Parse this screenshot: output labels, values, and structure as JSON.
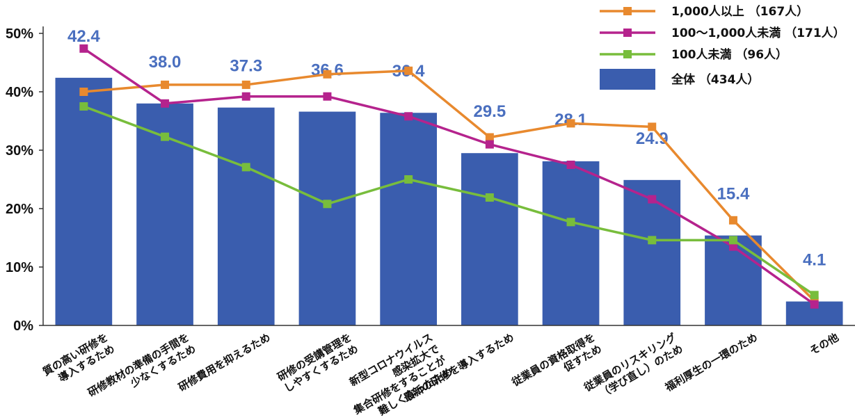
{
  "chart_data": {
    "type": "bar",
    "ylim": [
      0,
      50
    ],
    "yticks": [
      {
        "value": 0,
        "label": "0%"
      },
      {
        "value": 10,
        "label": "10%"
      },
      {
        "value": 20,
        "label": "20%"
      },
      {
        "value": 30,
        "label": "30%"
      },
      {
        "value": 40,
        "label": "40%"
      },
      {
        "value": 50,
        "label": "50%"
      }
    ],
    "categories": [
      [
        "質の高い研修を",
        "導入するため"
      ],
      [
        "研修教材の準備の手間を",
        "少なくするため"
      ],
      [
        "研修費用を抑えるため"
      ],
      [
        "研修の受講管理を",
        "しやすくするため"
      ],
      [
        "新型コロナウイルス",
        "感染拡大で",
        "集合研修をすることが",
        "難しくなったため"
      ],
      [
        "最新の研修を導入するため"
      ],
      [
        "従業員の資格取得を",
        "促すため"
      ],
      [
        "従業員のリスキリング",
        "（学び直し）のため"
      ],
      [
        "福利厚生の一環のため"
      ],
      [
        "その他"
      ]
    ],
    "bar_series": {
      "name": "全体 （434人）",
      "color": "#3a5dae",
      "values": [
        42.4,
        38.0,
        37.3,
        36.6,
        36.4,
        29.5,
        28.1,
        24.9,
        15.4,
        4.1
      ],
      "labels": [
        "42.4",
        "38.0",
        "37.3",
        "36.6",
        "36.4",
        "29.5",
        "28.1",
        "24.9",
        "15.4",
        "4.1"
      ]
    },
    "line_series": [
      {
        "name": "1,000人以上 （167人）",
        "color": "#e8892e",
        "values": [
          40.0,
          41.2,
          41.2,
          43.0,
          43.6,
          32.2,
          34.6,
          34.0,
          18.0,
          4.2
        ]
      },
      {
        "name": "100〜1,000人未満 （171人）",
        "color": "#b5238d",
        "values": [
          47.4,
          38.0,
          39.2,
          39.2,
          35.8,
          31.0,
          27.5,
          21.6,
          13.5,
          3.6
        ]
      },
      {
        "name": "100人未満 （96人）",
        "color": "#78bd3c",
        "values": [
          37.5,
          32.3,
          27.1,
          20.8,
          25.0,
          21.9,
          17.7,
          14.6,
          14.6,
          5.2
        ]
      }
    ],
    "legend_position": "top-right"
  }
}
